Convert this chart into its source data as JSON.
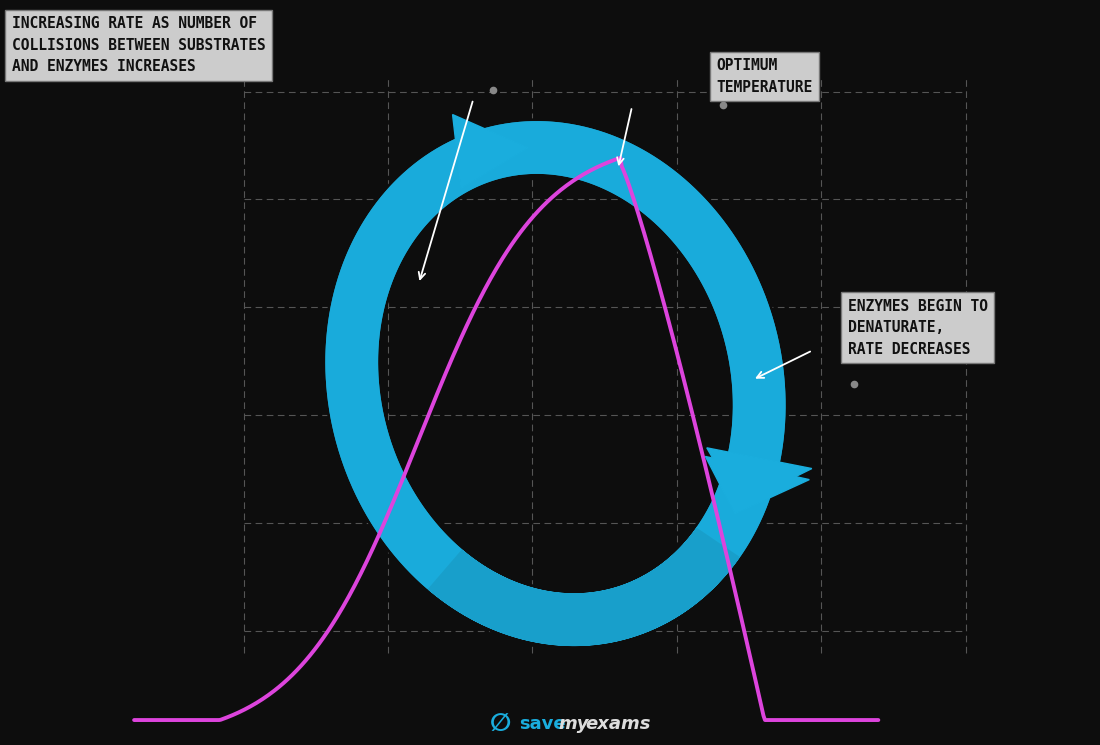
{
  "background_color": "#0d0d0d",
  "grid_color": "#555555",
  "magenta_color": "#dd44dd",
  "blue_color": "#1aaddd",
  "annotation_bg": "#cccccc",
  "annotation_text_color": "#111111",
  "label1_text": "INCREASING RATE AS NUMBER OF\nCOLLISIONS BETWEEN SUBSTRATES\nAND ENZYMES INCREASES",
  "label2_text": "OPTIMUM\nTEMPERATURE",
  "label3_text": "ENZYMES BEGIN TO\nDENATURATE,\nRATE DECREASES",
  "font_size_annotations": 10.5
}
